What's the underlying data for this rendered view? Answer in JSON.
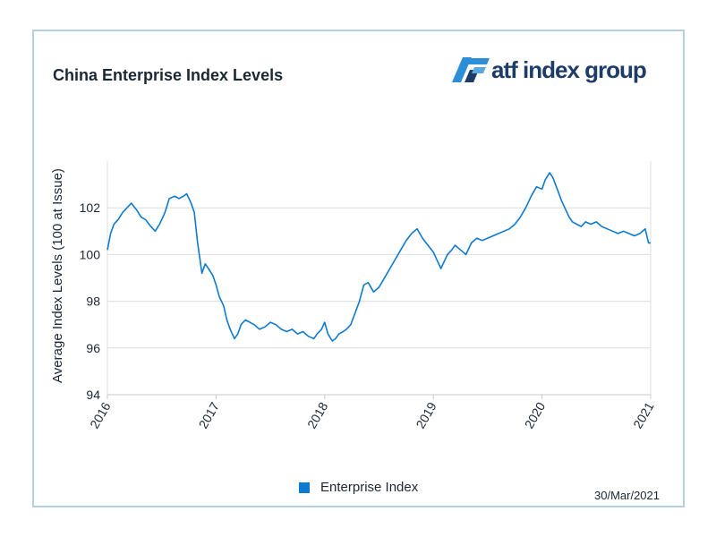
{
  "title": "China Enterprise Index Levels",
  "logo_text": "atf index group",
  "date_stamp": "30/Mar/2021",
  "colors": {
    "line": "#0d7ad1",
    "grid": "#dddddd",
    "frame": "#b7cfe2",
    "logo": "#1d3c68",
    "logo_accent": "#2c8ed6"
  },
  "chart_data": {
    "type": "line",
    "title": "China Enterprise Index Levels",
    "ylabel": "Average Index Levels (100 at Issue)",
    "xlabel": "",
    "ylim": [
      94,
      104
    ],
    "xlim": [
      2016.0,
      2021.0
    ],
    "yticks": [
      94,
      96,
      98,
      100,
      102
    ],
    "yticks_labels": [
      "94",
      "96",
      "98",
      "100",
      "102"
    ],
    "xticks": [
      2016,
      2017,
      2018,
      2019,
      2020,
      2021
    ],
    "xticks_labels": [
      "2016",
      "2017",
      "2018",
      "2019",
      "2020",
      "2021"
    ],
    "grid": true,
    "legend_position": "bottom",
    "series": [
      {
        "name": "Enterprise Index",
        "x": [
          2016.0,
          2016.03,
          2016.06,
          2016.1,
          2016.14,
          2016.18,
          2016.22,
          2016.27,
          2016.31,
          2016.35,
          2016.4,
          2016.44,
          2016.48,
          2016.53,
          2016.57,
          2016.62,
          2016.66,
          2016.7,
          2016.73,
          2016.75,
          2016.77,
          2016.8,
          2016.83,
          2016.87,
          2016.9,
          2016.93,
          2016.97,
          2017.0,
          2017.03,
          2017.07,
          2017.1,
          2017.13,
          2017.17,
          2017.2,
          2017.23,
          2017.27,
          2017.31,
          2017.35,
          2017.4,
          2017.45,
          2017.5,
          2017.55,
          2017.6,
          2017.65,
          2017.7,
          2017.75,
          2017.8,
          2017.85,
          2017.9,
          2017.93,
          2017.97,
          2018.0,
          2018.03,
          2018.07,
          2018.1,
          2018.13,
          2018.17,
          2018.2,
          2018.24,
          2018.28,
          2018.32,
          2018.36,
          2018.4,
          2018.45,
          2018.5,
          2018.55,
          2018.6,
          2018.65,
          2018.7,
          2018.75,
          2018.8,
          2018.85,
          2018.9,
          2018.95,
          2019.0,
          2019.03,
          2019.07,
          2019.1,
          2019.13,
          2019.17,
          2019.2,
          2019.25,
          2019.3,
          2019.35,
          2019.4,
          2019.45,
          2019.5,
          2019.55,
          2019.6,
          2019.65,
          2019.7,
          2019.75,
          2019.8,
          2019.85,
          2019.9,
          2019.95,
          2020.0,
          2020.03,
          2020.07,
          2020.1,
          2020.14,
          2020.18,
          2020.22,
          2020.25,
          2020.28,
          2020.32,
          2020.36,
          2020.4,
          2020.45,
          2020.5,
          2020.55,
          2020.6,
          2020.65,
          2020.7,
          2020.75,
          2020.8,
          2020.85,
          2020.9,
          2020.95,
          2020.98,
          2021.0
        ],
        "y": [
          100.2,
          100.9,
          101.3,
          101.5,
          101.8,
          102.0,
          102.2,
          101.9,
          101.6,
          101.5,
          101.2,
          101.0,
          101.3,
          101.8,
          102.4,
          102.5,
          102.4,
          102.5,
          102.6,
          102.4,
          102.2,
          101.8,
          100.5,
          99.2,
          99.6,
          99.4,
          99.1,
          98.7,
          98.2,
          97.8,
          97.2,
          96.8,
          96.4,
          96.6,
          97.0,
          97.2,
          97.1,
          97.0,
          96.8,
          96.9,
          97.1,
          97.0,
          96.8,
          96.7,
          96.8,
          96.6,
          96.7,
          96.5,
          96.4,
          96.6,
          96.8,
          97.1,
          96.6,
          96.3,
          96.4,
          96.6,
          96.7,
          96.8,
          97.0,
          97.5,
          98.0,
          98.7,
          98.8,
          98.4,
          98.6,
          99.0,
          99.4,
          99.8,
          100.2,
          100.6,
          100.9,
          101.1,
          100.7,
          100.4,
          100.1,
          99.8,
          99.4,
          99.7,
          100.0,
          100.2,
          100.4,
          100.2,
          100.0,
          100.5,
          100.7,
          100.6,
          100.7,
          100.8,
          100.9,
          101.0,
          101.1,
          101.3,
          101.6,
          102.0,
          102.5,
          102.9,
          102.8,
          103.2,
          103.5,
          103.3,
          102.8,
          102.3,
          101.9,
          101.6,
          101.4,
          101.3,
          101.2,
          101.4,
          101.3,
          101.4,
          101.2,
          101.1,
          101.0,
          100.9,
          101.0,
          100.9,
          100.8,
          100.9,
          101.1,
          100.5,
          100.5
        ]
      }
    ]
  },
  "legend": {
    "label": "Enterprise Index"
  }
}
